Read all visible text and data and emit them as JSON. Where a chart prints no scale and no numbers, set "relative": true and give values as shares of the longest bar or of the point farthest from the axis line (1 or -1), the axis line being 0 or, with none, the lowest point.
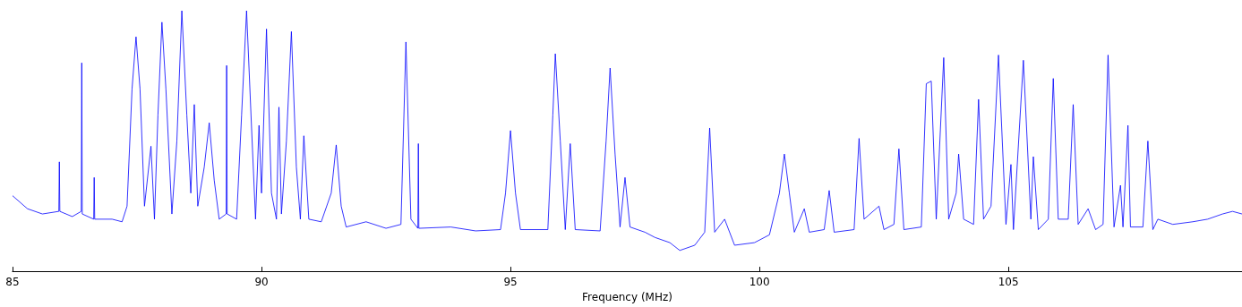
{
  "chart_data": {
    "type": "line",
    "xlabel": "Frequency (MHz)",
    "relative": true,
    "xlim": [
      85,
      109.69
    ],
    "xticks": [
      85,
      90,
      95,
      100,
      105
    ],
    "grid": false,
    "marker": "none",
    "line_style": "solid",
    "series": [
      {
        "color": "#0000ff",
        "x": [
          85.0,
          85.3,
          85.6,
          85.93,
          85.94,
          85.95,
          86.2,
          86.38,
          86.39,
          86.4,
          86.63,
          86.64,
          86.65,
          87.0,
          87.2,
          87.3,
          87.4,
          87.48,
          87.56,
          87.65,
          87.78,
          87.85,
          87.92,
          88.0,
          88.08,
          88.2,
          88.3,
          88.4,
          88.5,
          88.58,
          88.65,
          88.72,
          88.85,
          88.95,
          89.05,
          89.15,
          89.29,
          89.3,
          89.31,
          89.5,
          89.6,
          89.7,
          89.8,
          89.88,
          89.95,
          90.0,
          90.1,
          90.2,
          90.3,
          90.35,
          90.4,
          90.5,
          90.6,
          90.7,
          90.78,
          90.85,
          90.95,
          91.2,
          91.4,
          91.5,
          91.6,
          91.7,
          92.1,
          92.5,
          92.8,
          92.9,
          93.0,
          93.14,
          93.15,
          93.16,
          93.8,
          94.3,
          94.8,
          94.9,
          95.0,
          95.1,
          95.2,
          95.75,
          95.85,
          95.9,
          96.0,
          96.1,
          96.2,
          96.3,
          96.8,
          96.92,
          97.0,
          97.1,
          97.2,
          97.3,
          97.4,
          97.7,
          97.9,
          98.2,
          98.4,
          98.7,
          98.9,
          99.0,
          99.1,
          99.3,
          99.5,
          99.9,
          100.2,
          100.4,
          100.5,
          100.6,
          100.7,
          100.9,
          101.0,
          101.3,
          101.4,
          101.5,
          101.9,
          102.0,
          102.1,
          102.4,
          102.5,
          102.7,
          102.8,
          102.9,
          103.25,
          103.35,
          103.45,
          103.55,
          103.7,
          103.8,
          103.95,
          104.0,
          104.1,
          104.3,
          104.4,
          104.5,
          104.65,
          104.8,
          104.95,
          105.05,
          105.1,
          105.3,
          105.45,
          105.5,
          105.6,
          105.8,
          105.9,
          106.0,
          106.2,
          106.3,
          106.4,
          106.6,
          106.75,
          106.9,
          107.0,
          107.12,
          107.25,
          107.3,
          107.4,
          107.45,
          107.7,
          107.8,
          107.9,
          108.0,
          108.3,
          108.7,
          109.0,
          109.3,
          109.5,
          109.69
        ],
        "values": [
          0.29,
          0.24,
          0.22,
          0.23,
          0.42,
          0.23,
          0.21,
          0.23,
          0.8,
          0.22,
          0.2,
          0.36,
          0.2,
          0.2,
          0.19,
          0.25,
          0.7,
          0.9,
          0.7,
          0.25,
          0.48,
          0.2,
          0.6,
          0.956,
          0.7,
          0.22,
          0.5,
          1.0,
          0.6,
          0.3,
          0.64,
          0.25,
          0.4,
          0.57,
          0.35,
          0.2,
          0.22,
          0.79,
          0.22,
          0.2,
          0.6,
          1.0,
          0.55,
          0.2,
          0.56,
          0.3,
          0.93,
          0.3,
          0.2,
          0.63,
          0.22,
          0.5,
          0.92,
          0.4,
          0.2,
          0.52,
          0.2,
          0.19,
          0.3,
          0.485,
          0.25,
          0.17,
          0.19,
          0.165,
          0.18,
          0.88,
          0.2,
          0.165,
          0.49,
          0.165,
          0.17,
          0.155,
          0.16,
          0.3,
          0.54,
          0.3,
          0.16,
          0.16,
          0.6,
          0.835,
          0.5,
          0.16,
          0.49,
          0.16,
          0.155,
          0.5,
          0.78,
          0.45,
          0.17,
          0.36,
          0.17,
          0.15,
          0.13,
          0.11,
          0.08,
          0.1,
          0.15,
          0.55,
          0.15,
          0.2,
          0.1,
          0.11,
          0.14,
          0.3,
          0.45,
          0.3,
          0.15,
          0.24,
          0.15,
          0.16,
          0.31,
          0.15,
          0.16,
          0.51,
          0.2,
          0.25,
          0.16,
          0.18,
          0.47,
          0.16,
          0.17,
          0.72,
          0.73,
          0.2,
          0.82,
          0.2,
          0.3,
          0.45,
          0.2,
          0.18,
          0.66,
          0.2,
          0.25,
          0.83,
          0.18,
          0.41,
          0.16,
          0.81,
          0.2,
          0.44,
          0.16,
          0.2,
          0.74,
          0.2,
          0.2,
          0.64,
          0.18,
          0.24,
          0.16,
          0.18,
          0.83,
          0.17,
          0.33,
          0.17,
          0.56,
          0.17,
          0.17,
          0.5,
          0.16,
          0.2,
          0.18,
          0.19,
          0.2,
          0.22,
          0.23,
          0.22
        ]
      }
    ]
  }
}
